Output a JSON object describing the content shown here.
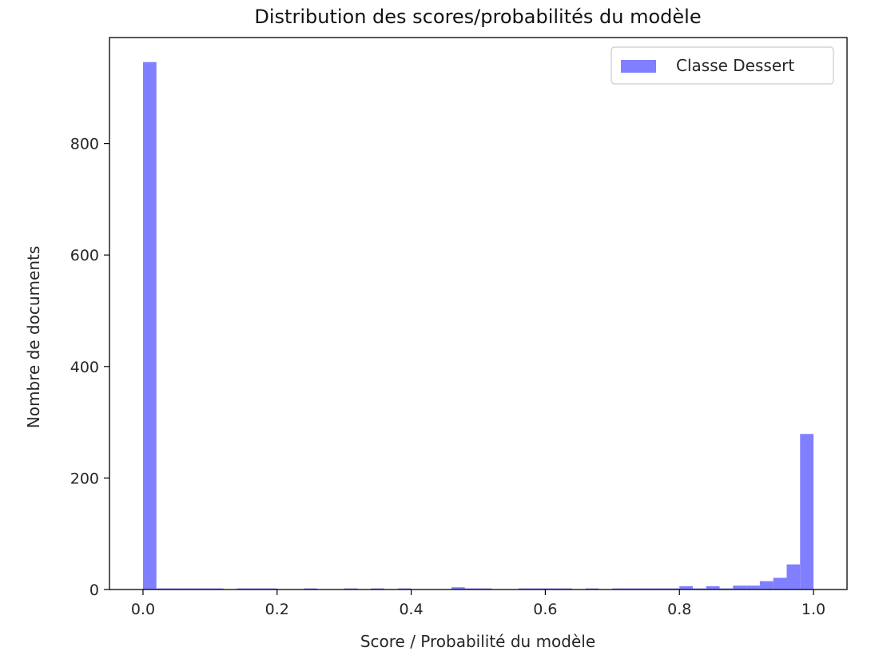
{
  "chart_data": {
    "type": "bar",
    "title": "Distribution des scores/probabilités du modèle",
    "xlabel": "Score / Probabilité du modèle",
    "ylabel": "Nombre de documents",
    "xlim": [
      -0.05,
      1.05
    ],
    "ylim": [
      0,
      990
    ],
    "xticks": [
      0.0,
      0.2,
      0.4,
      0.6,
      0.8,
      1.0
    ],
    "xtick_labels": [
      "0.0",
      "0.2",
      "0.4",
      "0.6",
      "0.8",
      "1.0"
    ],
    "yticks": [
      0,
      200,
      400,
      600,
      800
    ],
    "ytick_labels": [
      "0",
      "200",
      "400",
      "600",
      "800"
    ],
    "bin_width": 0.02,
    "bin_start": 0.0,
    "series": [
      {
        "name": "Classe Dessert",
        "color": "#7f7fff",
        "values": [
          946,
          2,
          2,
          2,
          2,
          2,
          0,
          2,
          2,
          2,
          0,
          0,
          2,
          0,
          0,
          2,
          0,
          2,
          0,
          2,
          0,
          0,
          0,
          4,
          2,
          2,
          0,
          0,
          2,
          2,
          2,
          2,
          0,
          2,
          0,
          2,
          2,
          2,
          2,
          2,
          6,
          2,
          6,
          2,
          7,
          7,
          15,
          21,
          45,
          279
        ]
      }
    ],
    "legend": "upper right",
    "grid": false
  }
}
